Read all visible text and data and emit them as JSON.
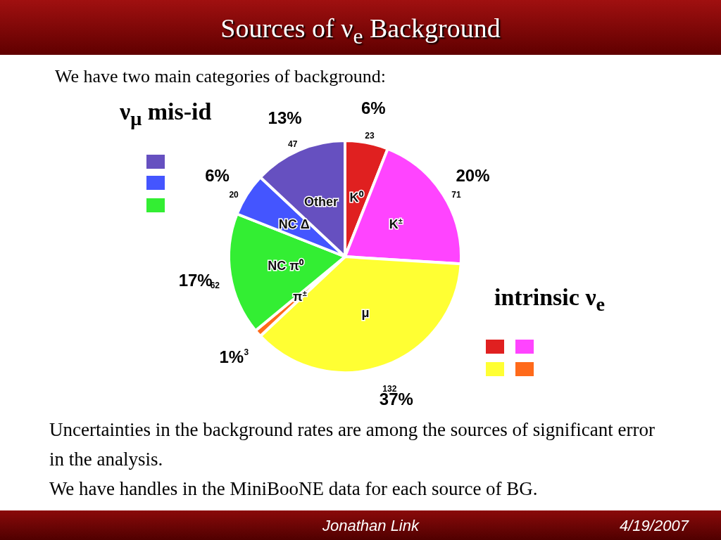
{
  "chart_data": {
    "type": "pie",
    "title": "Sources of ν$_{e}$ Background",
    "subtitle": "We have two main categories of background:",
    "categories": [
      "K⁰",
      "K$^{±}$",
      "μ",
      "π$^{±}$",
      "NC π⁰",
      "NC Δ",
      "Other"
    ],
    "values": [
      6,
      20,
      37,
      1,
      17,
      6,
      13
    ],
    "value_labels": [
      "6%",
      "20%",
      "37%",
      "1%",
      "17%",
      "6%",
      "13%"
    ],
    "colors": [
      "#e02020",
      "#ff44ff",
      "#ffff33",
      "#ff6a1a",
      "#33ee33",
      "#4455ff",
      "#6650c0"
    ],
    "legend": false,
    "annotations": [
      "ν$_{μ}$ mis-id",
      "intrinsic ν$_{e}$",
      "Uncertainties in the background rates are among the sources of significant error in the analysis.",
      "We have handles in the MiniBooNE data for each source of BG.",
      "Jonathan Link",
      "4/19/2007",
      "23",
      "71",
      "132",
      "3",
      "62",
      "20",
      "47"
    ]
  }
}
